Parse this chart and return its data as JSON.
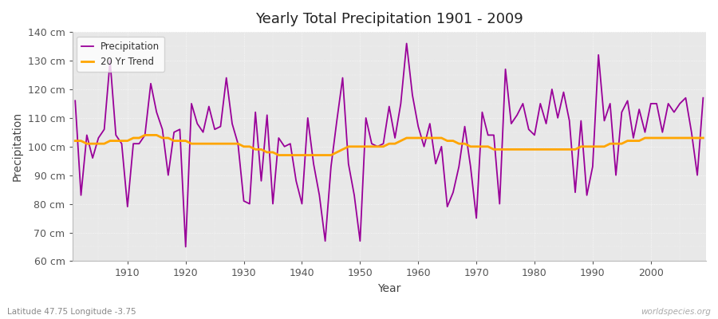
{
  "title": "Yearly Total Precipitation 1901 - 2009",
  "xlabel": "Year",
  "ylabel": "Precipitation",
  "subtitle": "Latitude 47.75 Longitude -3.75",
  "watermark": "worldspecies.org",
  "bg_color": "#f5f5f5",
  "plot_bg_color": "#f0f0f0",
  "precip_color": "#990099",
  "trend_color": "#FFA500",
  "years": [
    1901,
    1902,
    1903,
    1904,
    1905,
    1906,
    1907,
    1908,
    1909,
    1910,
    1911,
    1912,
    1913,
    1914,
    1915,
    1916,
    1917,
    1918,
    1919,
    1920,
    1921,
    1922,
    1923,
    1924,
    1925,
    1926,
    1927,
    1928,
    1929,
    1930,
    1931,
    1932,
    1933,
    1934,
    1935,
    1936,
    1937,
    1938,
    1939,
    1940,
    1941,
    1942,
    1943,
    1944,
    1945,
    1946,
    1947,
    1948,
    1949,
    1950,
    1951,
    1952,
    1953,
    1954,
    1955,
    1956,
    1957,
    1958,
    1959,
    1960,
    1961,
    1962,
    1963,
    1964,
    1965,
    1966,
    1967,
    1968,
    1969,
    1970,
    1971,
    1972,
    1973,
    1974,
    1975,
    1976,
    1977,
    1978,
    1979,
    1980,
    1981,
    1982,
    1983,
    1984,
    1985,
    1986,
    1987,
    1988,
    1989,
    1990,
    1991,
    1992,
    1993,
    1994,
    1995,
    1996,
    1997,
    1998,
    1999,
    2000,
    2001,
    2002,
    2003,
    2004,
    2005,
    2006,
    2007,
    2008,
    2009
  ],
  "precip": [
    116,
    83,
    104,
    96,
    103,
    106,
    130,
    104,
    101,
    79,
    101,
    101,
    104,
    122,
    112,
    106,
    90,
    105,
    106,
    65,
    115,
    108,
    105,
    114,
    106,
    107,
    124,
    108,
    101,
    81,
    80,
    112,
    88,
    111,
    80,
    103,
    100,
    101,
    88,
    80,
    110,
    94,
    83,
    67,
    93,
    109,
    124,
    94,
    83,
    67,
    110,
    101,
    100,
    101,
    114,
    103,
    115,
    136,
    118,
    107,
    100,
    108,
    94,
    100,
    79,
    84,
    93,
    107,
    93,
    75,
    112,
    104,
    104,
    80,
    127,
    108,
    111,
    115,
    106,
    104,
    115,
    108,
    120,
    110,
    119,
    109,
    84,
    109,
    83,
    93,
    132,
    109,
    115,
    90,
    112,
    116,
    103,
    113,
    105,
    115,
    115,
    105,
    115,
    112,
    115,
    117,
    105,
    90,
    117
  ],
  "trend": [
    102,
    102,
    101,
    101,
    101,
    101,
    102,
    102,
    102,
    102,
    103,
    103,
    104,
    104,
    104,
    103,
    103,
    102,
    102,
    102,
    101,
    101,
    101,
    101,
    101,
    101,
    101,
    101,
    101,
    100,
    100,
    99,
    99,
    98,
    98,
    97,
    97,
    97,
    97,
    97,
    97,
    97,
    97,
    97,
    97,
    98,
    99,
    100,
    100,
    100,
    100,
    100,
    100,
    100,
    101,
    101,
    102,
    103,
    103,
    103,
    103,
    103,
    103,
    103,
    102,
    102,
    101,
    101,
    100,
    100,
    100,
    100,
    99,
    99,
    99,
    99,
    99,
    99,
    99,
    99,
    99,
    99,
    99,
    99,
    99,
    99,
    99,
    100,
    100,
    100,
    100,
    100,
    101,
    101,
    101,
    102,
    102,
    102,
    103,
    103,
    103,
    103,
    103,
    103,
    103,
    103,
    103,
    103,
    103
  ],
  "ylim": [
    60,
    140
  ],
  "yticks": [
    60,
    70,
    80,
    90,
    100,
    110,
    120,
    130,
    140
  ],
  "xticks": [
    1910,
    1920,
    1930,
    1940,
    1950,
    1960,
    1970,
    1980,
    1990,
    2000
  ]
}
